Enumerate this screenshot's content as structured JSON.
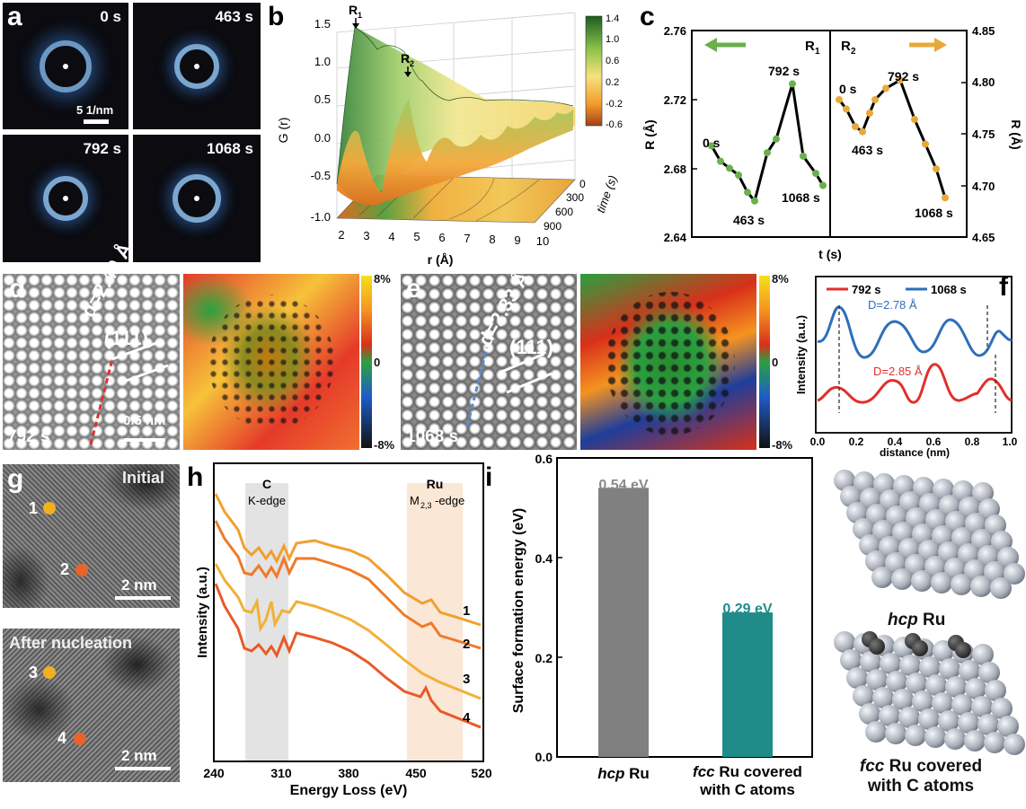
{
  "panels": {
    "a": "a",
    "b": "b",
    "c": "c",
    "d": "d",
    "e": "e",
    "f": "f",
    "g": "g",
    "h": "h",
    "i": "i"
  },
  "a": {
    "t0": "0 s",
    "t1": "463 s",
    "t2": "792 s",
    "t3": "1068 s",
    "scale": "5 1/nm"
  },
  "b": {
    "ylabel": "G (r)",
    "xlabel": "r (Å)",
    "tlabel": "time (s)",
    "yticks": [
      "1.5",
      "1.0",
      "0.5",
      "0.0",
      "-0.5",
      "-1.0"
    ],
    "xticks": [
      "2",
      "3",
      "4",
      "5",
      "6",
      "7",
      "8",
      "9",
      "10"
    ],
    "tticks": [
      "0",
      "300",
      "600",
      "900"
    ],
    "cbar": [
      "1.4",
      "1.0",
      "0.6",
      "0.2",
      "-0.2",
      "-0.6"
    ],
    "r1": "R",
    "r1sub": "1",
    "r2": "R",
    "r2sub": "2"
  },
  "c": {
    "ylabel_left": "R (Å)",
    "ylabel_right": "R (Å)",
    "xlabel": "t (s)",
    "left_ticks": [
      "2.76",
      "2.72",
      "2.68",
      "2.64"
    ],
    "right_ticks": [
      "4.85",
      "4.80",
      "4.75",
      "4.70",
      "4.65"
    ],
    "r1": "R",
    "r1sub": "1",
    "r2": "R",
    "r2sub": "2",
    "labels1": [
      "0 s",
      "463 s",
      "792 s",
      "1068 s"
    ],
    "labels2": [
      "0 s",
      "463 s",
      "792 s",
      "1068 s"
    ],
    "arrow_left_color": "#6ab04c",
    "arrow_right_color": "#e8a93a"
  },
  "d": {
    "dlabel": "d=2.40 Å",
    "plane": "(111)",
    "time": "792 s",
    "scale": "0.5 nm",
    "cbar_top": "8%",
    "cbar_mid": "0",
    "cbar_bot": "-8%"
  },
  "e": {
    "dlabel": "d=2.33 Å",
    "plane": "(111)",
    "time": "1068 s",
    "cbar_top": "8%",
    "cbar_mid": "0",
    "cbar_bot": "-8%"
  },
  "f": {
    "legend1": "792 s",
    "legend2": "1068 s",
    "D1": "D=2.78 Å",
    "D2": "D=2.85 Å",
    "ylabel": "Intensity (a.u.)",
    "xlabel": "distance (nm)",
    "xticks": [
      "0.0",
      "0.2",
      "0.4",
      "0.6",
      "0.8",
      "1.0"
    ],
    "c1": "#e0302c",
    "c2": "#2d6fba"
  },
  "g": {
    "top_label": "Initial",
    "bottom_label": "After nucleation",
    "scale": "2 nm",
    "p1": "1",
    "p2": "2",
    "p3": "3",
    "p4": "4"
  },
  "h": {
    "edge1": "C",
    "edge1b": "K-edge",
    "edge2": "Ru",
    "edge2b": "M",
    "edge2sub": "2,3",
    "edge2c": "-edge",
    "ylabel": "Intensity (a.u.)",
    "xlabel": "Energy Loss (eV)",
    "xticks": [
      "240",
      "310",
      "380",
      "450",
      "520"
    ],
    "spectra": [
      "1",
      "2",
      "3",
      "4"
    ]
  },
  "i": {
    "ylabel": "Surface formation energy (eV)",
    "yticks": [
      "0.6",
      "0.4",
      "0.2",
      "0.0"
    ],
    "cat1a": "hcp",
    "cat1b": " Ru",
    "cat2a": "fcc",
    "cat2b": " Ru covered",
    "cat2c": "with C atoms",
    "model1a": "hcp",
    "model1b": " Ru",
    "model2a": "fcc",
    "model2b": " Ru covered",
    "model2c": "with C atoms",
    "v1label": "0.54 eV",
    "v2label": "0.29 eV"
  },
  "chart_data": [
    {
      "type": "line",
      "panel": "c",
      "ylabel": "R (Å)",
      "xlabel": "t (s)",
      "series": [
        {
          "name": "R1",
          "y_left_axis": true,
          "values": [
            2.693,
            2.684,
            2.68,
            2.676,
            2.666,
            2.661,
            2.689,
            2.697,
            2.729,
            2.687,
            2.677,
            2.67
          ]
        },
        {
          "name": "R2",
          "y_right_axis": true,
          "values": [
            4.783,
            4.774,
            4.757,
            4.752,
            4.77,
            4.783,
            4.794,
            4.802,
            4.764,
            4.74,
            4.716,
            4.688
          ]
        }
      ],
      "ylim_left": [
        2.64,
        2.76
      ],
      "ylim_right": [
        4.65,
        4.85
      ]
    },
    {
      "type": "line",
      "panel": "f",
      "xlabel": "distance (nm)",
      "ylabel": "Intensity (a.u.)",
      "xlim": [
        0,
        1.0
      ],
      "series": [
        {
          "name": "792 s"
        },
        {
          "name": "1068 s"
        }
      ]
    },
    {
      "type": "bar",
      "panel": "i",
      "ylabel": "Surface formation energy (eV)",
      "ylim": [
        0,
        0.6
      ],
      "categories": [
        "hcp Ru",
        "fcc Ru covered with C atoms"
      ],
      "values": [
        0.54,
        0.29
      ],
      "colors": [
        "#808080",
        "#1f8c8a"
      ]
    },
    {
      "type": "line",
      "panel": "h",
      "xlabel": "Energy Loss (eV)",
      "ylabel": "Intensity (a.u.)",
      "xlim": [
        240,
        520
      ],
      "series": [
        {
          "name": "1"
        },
        {
          "name": "2"
        },
        {
          "name": "3"
        },
        {
          "name": "4"
        }
      ]
    }
  ]
}
